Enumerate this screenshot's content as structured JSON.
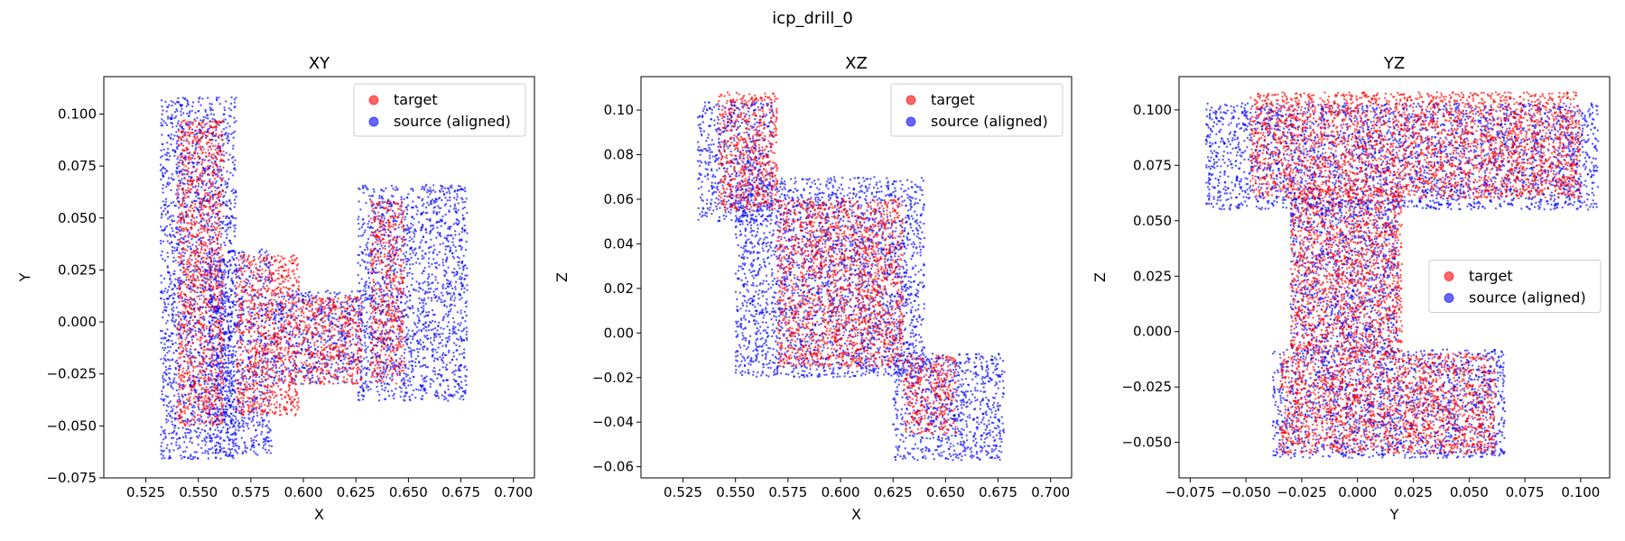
{
  "figure": {
    "title": "icp_drill_0"
  },
  "colors": {
    "target": "#ff0000",
    "source": "#0000ff"
  },
  "chart_data": [
    {
      "type": "scatter",
      "title": "XY",
      "xlabel": "X",
      "ylabel": "Y",
      "xlim": [
        0.505,
        0.71
      ],
      "ylim": [
        -0.075,
        0.118
      ],
      "xticks": [
        0.525,
        0.55,
        0.575,
        0.6,
        0.625,
        0.65,
        0.675,
        0.7
      ],
      "yticks": [
        -0.075,
        -0.05,
        -0.025,
        0.0,
        0.025,
        0.05,
        0.075,
        0.1
      ],
      "xtick_labels": [
        "0.525",
        "0.550",
        "0.575",
        "0.600",
        "0.625",
        "0.650",
        "0.675",
        "0.700"
      ],
      "ytick_labels": [
        "−0.075",
        "−0.050",
        "−0.025",
        "0.000",
        "0.025",
        "0.050",
        "0.075",
        "0.100"
      ],
      "legend": {
        "position": "upper right",
        "entries": [
          "target",
          "source (aligned)"
        ]
      },
      "series": [
        {
          "name": "source (aligned)",
          "color": "#0000ff",
          "regions": [
            {
              "x": [
                0.532,
                0.568
              ],
              "y": [
                -0.066,
                0.108
              ]
            },
            {
              "x": [
                0.555,
                0.585
              ],
              "y": [
                -0.064,
                0.035
              ]
            },
            {
              "x": [
                0.585,
                0.628
              ],
              "y": [
                -0.03,
                0.015
              ]
            },
            {
              "x": [
                0.626,
                0.678
              ],
              "y": [
                -0.038,
                0.066
              ]
            }
          ]
        },
        {
          "name": "target",
          "color": "#ff0000",
          "regions": [
            {
              "x": [
                0.54,
                0.562
              ],
              "y": [
                -0.05,
                0.097
              ]
            },
            {
              "x": [
                0.568,
                0.598
              ],
              "y": [
                -0.045,
                0.032
              ]
            },
            {
              "x": [
                0.598,
                0.628
              ],
              "y": [
                -0.03,
                0.012
              ]
            },
            {
              "x": [
                0.632,
                0.648
              ],
              "y": [
                -0.03,
                0.058
              ]
            }
          ]
        }
      ]
    },
    {
      "type": "scatter",
      "title": "XZ",
      "xlabel": "X",
      "ylabel": "Z",
      "xlim": [
        0.505,
        0.71
      ],
      "ylim": [
        -0.065,
        0.115
      ],
      "xticks": [
        0.525,
        0.55,
        0.575,
        0.6,
        0.625,
        0.65,
        0.675,
        0.7
      ],
      "yticks": [
        -0.06,
        -0.04,
        -0.02,
        0.0,
        0.02,
        0.04,
        0.06,
        0.08,
        0.1
      ],
      "xtick_labels": [
        "0.525",
        "0.550",
        "0.575",
        "0.600",
        "0.625",
        "0.650",
        "0.675",
        "0.700"
      ],
      "ytick_labels": [
        "−0.06",
        "−0.04",
        "−0.02",
        "0.00",
        "0.02",
        "0.04",
        "0.06",
        "0.08",
        "0.10"
      ],
      "legend": {
        "position": "upper right",
        "entries": [
          "target",
          "source (aligned)"
        ]
      },
      "series": [
        {
          "name": "source (aligned)",
          "color": "#0000ff",
          "regions": [
            {
              "x": [
                0.532,
                0.568
              ],
              "y": [
                0.05,
                0.104
              ]
            },
            {
              "x": [
                0.55,
                0.64
              ],
              "y": [
                -0.02,
                0.07
              ]
            },
            {
              "x": [
                0.625,
                0.678
              ],
              "y": [
                -0.057,
                -0.009
              ]
            }
          ]
        },
        {
          "name": "target",
          "color": "#ff0000",
          "regions": [
            {
              "x": [
                0.542,
                0.57
              ],
              "y": [
                0.055,
                0.108
              ]
            },
            {
              "x": [
                0.57,
                0.63
              ],
              "y": [
                -0.015,
                0.06
              ]
            },
            {
              "x": [
                0.63,
                0.655
              ],
              "y": [
                -0.045,
                -0.01
              ]
            }
          ]
        }
      ]
    },
    {
      "type": "scatter",
      "title": "YZ",
      "xlabel": "Y",
      "ylabel": "Z",
      "xlim": [
        -0.08,
        0.113
      ],
      "ylim": [
        -0.066,
        0.115
      ],
      "xticks": [
        -0.075,
        -0.05,
        -0.025,
        0.0,
        0.025,
        0.05,
        0.075,
        0.1
      ],
      "yticks": [
        -0.05,
        -0.025,
        0.0,
        0.025,
        0.05,
        0.075,
        0.1
      ],
      "xtick_labels": [
        "−0.075",
        "−0.050",
        "−0.025",
        "0.000",
        "0.025",
        "0.050",
        "0.075",
        "0.100"
      ],
      "ytick_labels": [
        "−0.050",
        "−0.025",
        "0.000",
        "0.025",
        "0.050",
        "0.075",
        "0.100"
      ],
      "legend": {
        "position": "center right",
        "entries": [
          "target",
          "source (aligned)"
        ]
      },
      "series": [
        {
          "name": "source (aligned)",
          "color": "#0000ff",
          "regions": [
            {
              "x": [
                -0.068,
                0.108
              ],
              "y": [
                0.055,
                0.103
              ]
            },
            {
              "x": [
                -0.03,
                0.018
              ],
              "y": [
                -0.01,
                0.06
              ]
            },
            {
              "x": [
                -0.038,
                0.066
              ],
              "y": [
                -0.057,
                -0.008
              ]
            }
          ]
        },
        {
          "name": "target",
          "color": "#ff0000",
          "regions": [
            {
              "x": [
                -0.048,
                0.1
              ],
              "y": [
                0.06,
                0.108
              ]
            },
            {
              "x": [
                -0.03,
                0.02
              ],
              "y": [
                -0.01,
                0.065
              ]
            },
            {
              "x": [
                -0.035,
                0.062
              ],
              "y": [
                -0.055,
                -0.01
              ]
            }
          ]
        }
      ]
    }
  ]
}
